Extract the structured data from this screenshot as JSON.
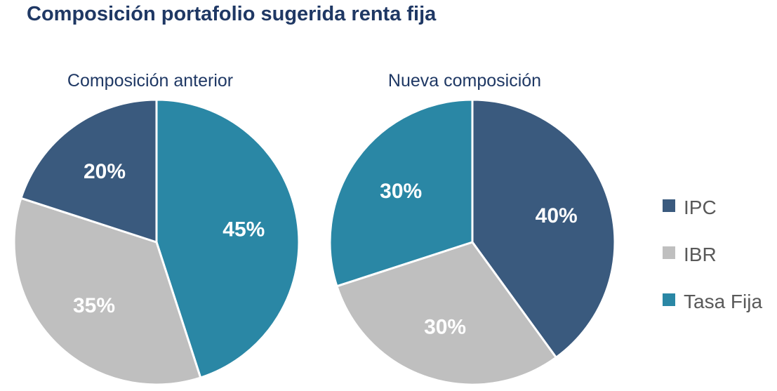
{
  "title": "Composición portafolio sugerida renta fija",
  "colors": {
    "IPC": "#3a5a7e",
    "IBR": "#bfbfbf",
    "Tasa Fija": "#2a87a5",
    "title": "#1f3864",
    "legend_text": "#595959"
  },
  "chart_data": [
    {
      "type": "pie",
      "title": "Composición anterior",
      "series": [
        {
          "name": "Tasa Fija",
          "value": 45,
          "label": "45%"
        },
        {
          "name": "IBR",
          "value": 35,
          "label": "35%"
        },
        {
          "name": "IPC",
          "value": 20,
          "label": "20%"
        }
      ]
    },
    {
      "type": "pie",
      "title": "Nueva composición",
      "series": [
        {
          "name": "IPC",
          "value": 40,
          "label": "40%"
        },
        {
          "name": "IBR",
          "value": 30,
          "label": "30%"
        },
        {
          "name": "Tasa Fija",
          "value": 30,
          "label": "30%"
        }
      ]
    }
  ],
  "legend": {
    "position": "right",
    "items": [
      "IPC",
      "IBR",
      "Tasa Fija"
    ]
  }
}
